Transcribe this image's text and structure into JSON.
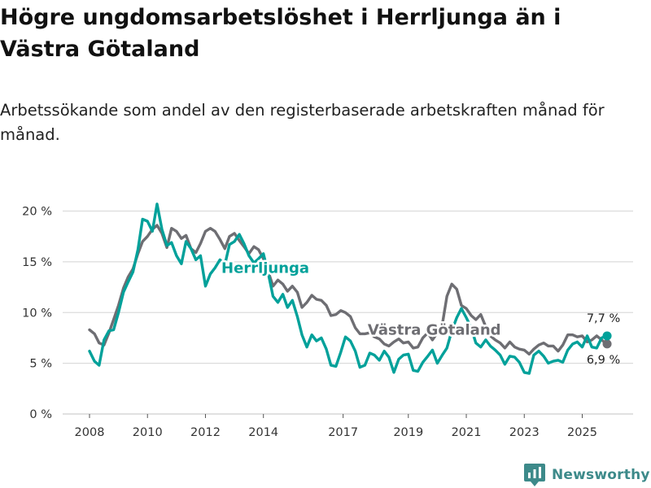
{
  "title": "Högre ungdomsarbetslöshet i Herrljunga än i Västra Götaland",
  "subtitle": "Arbetssökande som andel av den registerbaserade arbetskraften månad för månad.",
  "brand": "Newsworthy",
  "colors": {
    "herrljunga": "#00a19a",
    "vastra": "#6e6e73",
    "grid": "#dcdcdc",
    "axis": "#333333"
  },
  "chart_data": {
    "type": "line",
    "title": "Högre ungdomsarbetslöshet i Herrljunga än i Västra Götaland",
    "xlabel": "",
    "ylabel": "Arbetssökande som andel av den registerbaserade arbetskraften",
    "xlim": [
      2007.4,
      2026.8
    ],
    "ylim": [
      0,
      21
    ],
    "y_ticks": [
      0,
      5,
      10,
      15,
      20
    ],
    "y_tick_labels": [
      "0 %",
      "5 %",
      "10 %",
      "15 %",
      "20 %"
    ],
    "x_ticks": [
      2008,
      2010,
      2012,
      2014,
      2017,
      2019,
      2021,
      2023,
      2025
    ],
    "x_tick_labels": [
      "2008",
      "2010",
      "2012",
      "2014",
      "2017",
      "2019",
      "2021",
      "2023",
      "2025"
    ],
    "x_label_offsets": {
      "2017": -0.25
    },
    "grid": true,
    "series": [
      {
        "name": "Västra Götaland",
        "label_pos": [
          2017.6,
          7.8
        ],
        "points": [
          [
            2008.0,
            8.3
          ],
          [
            2008.17,
            7.9
          ],
          [
            2008.33,
            7.0
          ],
          [
            2008.5,
            6.8
          ],
          [
            2008.67,
            8.0
          ],
          [
            2008.83,
            9.3
          ],
          [
            2009.0,
            10.7
          ],
          [
            2009.17,
            12.4
          ],
          [
            2009.33,
            13.5
          ],
          [
            2009.5,
            14.3
          ],
          [
            2009.67,
            15.8
          ],
          [
            2009.83,
            17.0
          ],
          [
            2010.0,
            17.5
          ],
          [
            2010.17,
            18.2
          ],
          [
            2010.33,
            18.6
          ],
          [
            2010.5,
            17.8
          ],
          [
            2010.67,
            16.4
          ],
          [
            2010.83,
            18.3
          ],
          [
            2011.0,
            18.0
          ],
          [
            2011.17,
            17.3
          ],
          [
            2011.33,
            17.6
          ],
          [
            2011.5,
            16.3
          ],
          [
            2011.67,
            15.9
          ],
          [
            2011.83,
            16.8
          ],
          [
            2012.0,
            18.0
          ],
          [
            2012.17,
            18.3
          ],
          [
            2012.33,
            18.0
          ],
          [
            2012.5,
            17.2
          ],
          [
            2012.67,
            16.3
          ],
          [
            2012.83,
            17.5
          ],
          [
            2013.0,
            17.8
          ],
          [
            2013.17,
            17.1
          ],
          [
            2013.33,
            16.5
          ],
          [
            2013.5,
            15.8
          ],
          [
            2013.67,
            16.5
          ],
          [
            2013.83,
            16.2
          ],
          [
            2014.0,
            15.3
          ],
          [
            2014.17,
            14.0
          ],
          [
            2014.33,
            12.6
          ],
          [
            2014.5,
            13.2
          ],
          [
            2014.67,
            12.8
          ],
          [
            2014.83,
            12.1
          ],
          [
            2015.0,
            12.6
          ],
          [
            2015.17,
            12.0
          ],
          [
            2015.33,
            10.5
          ],
          [
            2015.5,
            11.0
          ],
          [
            2015.67,
            11.7
          ],
          [
            2015.83,
            11.3
          ],
          [
            2016.0,
            11.2
          ],
          [
            2016.17,
            10.7
          ],
          [
            2016.33,
            9.7
          ],
          [
            2016.5,
            9.8
          ],
          [
            2016.67,
            10.2
          ],
          [
            2016.83,
            10.0
          ],
          [
            2017.0,
            9.6
          ],
          [
            2017.17,
            8.5
          ],
          [
            2017.33,
            7.9
          ],
          [
            2017.5,
            7.9
          ],
          [
            2017.67,
            8.0
          ],
          [
            2017.83,
            7.6
          ],
          [
            2018.0,
            7.4
          ],
          [
            2018.17,
            6.9
          ],
          [
            2018.33,
            6.7
          ],
          [
            2018.5,
            7.1
          ],
          [
            2018.67,
            7.4
          ],
          [
            2018.83,
            7.0
          ],
          [
            2019.0,
            7.1
          ],
          [
            2019.17,
            6.5
          ],
          [
            2019.33,
            6.6
          ],
          [
            2019.5,
            7.5
          ],
          [
            2019.67,
            8.0
          ],
          [
            2019.83,
            7.3
          ],
          [
            2020.0,
            8.0
          ],
          [
            2020.17,
            8.8
          ],
          [
            2020.33,
            11.6
          ],
          [
            2020.5,
            12.8
          ],
          [
            2020.67,
            12.3
          ],
          [
            2020.83,
            10.7
          ],
          [
            2021.0,
            10.4
          ],
          [
            2021.17,
            9.7
          ],
          [
            2021.33,
            9.3
          ],
          [
            2021.5,
            9.8
          ],
          [
            2021.67,
            8.6
          ],
          [
            2021.83,
            7.7
          ],
          [
            2022.0,
            7.3
          ],
          [
            2022.17,
            7.0
          ],
          [
            2022.33,
            6.5
          ],
          [
            2022.5,
            7.1
          ],
          [
            2022.67,
            6.6
          ],
          [
            2022.83,
            6.4
          ],
          [
            2023.0,
            6.3
          ],
          [
            2023.17,
            5.9
          ],
          [
            2023.33,
            6.4
          ],
          [
            2023.5,
            6.8
          ],
          [
            2023.67,
            7.0
          ],
          [
            2023.83,
            6.7
          ],
          [
            2024.0,
            6.7
          ],
          [
            2024.17,
            6.2
          ],
          [
            2024.33,
            6.8
          ],
          [
            2024.5,
            7.8
          ],
          [
            2024.67,
            7.8
          ],
          [
            2024.83,
            7.6
          ],
          [
            2025.0,
            7.7
          ],
          [
            2025.17,
            7.1
          ],
          [
            2025.33,
            7.3
          ],
          [
            2025.5,
            7.7
          ],
          [
            2025.67,
            7.3
          ],
          [
            2025.83,
            6.9
          ]
        ],
        "last_label": "6,9 %"
      },
      {
        "name": "Herrljunga",
        "label_pos": [
          2012.55,
          13.9
        ],
        "points": [
          [
            2008.0,
            6.2
          ],
          [
            2008.17,
            5.2
          ],
          [
            2008.33,
            4.8
          ],
          [
            2008.5,
            7.3
          ],
          [
            2008.67,
            8.2
          ],
          [
            2008.83,
            8.3
          ],
          [
            2009.0,
            10.0
          ],
          [
            2009.17,
            12.0
          ],
          [
            2009.33,
            13.0
          ],
          [
            2009.5,
            14.0
          ],
          [
            2009.67,
            16.2
          ],
          [
            2009.83,
            19.2
          ],
          [
            2010.0,
            19.0
          ],
          [
            2010.17,
            18.0
          ],
          [
            2010.33,
            20.7
          ],
          [
            2010.5,
            18.2
          ],
          [
            2010.67,
            16.6
          ],
          [
            2010.83,
            16.9
          ],
          [
            2011.0,
            15.6
          ],
          [
            2011.17,
            14.8
          ],
          [
            2011.33,
            17.0
          ],
          [
            2011.5,
            16.3
          ],
          [
            2011.67,
            15.2
          ],
          [
            2011.83,
            15.6
          ],
          [
            2012.0,
            12.6
          ],
          [
            2012.17,
            13.8
          ],
          [
            2012.33,
            14.4
          ],
          [
            2012.5,
            15.2
          ],
          [
            2012.67,
            14.7
          ],
          [
            2012.83,
            16.7
          ],
          [
            2013.0,
            17.0
          ],
          [
            2013.17,
            17.7
          ],
          [
            2013.33,
            16.8
          ],
          [
            2013.5,
            15.6
          ],
          [
            2013.67,
            14.9
          ],
          [
            2013.83,
            15.3
          ],
          [
            2014.0,
            15.8
          ],
          [
            2014.17,
            13.8
          ],
          [
            2014.33,
            11.6
          ],
          [
            2014.5,
            11.0
          ],
          [
            2014.67,
            11.8
          ],
          [
            2014.83,
            10.5
          ],
          [
            2015.0,
            11.2
          ],
          [
            2015.17,
            9.6
          ],
          [
            2015.33,
            7.8
          ],
          [
            2015.5,
            6.6
          ],
          [
            2015.67,
            7.8
          ],
          [
            2015.83,
            7.2
          ],
          [
            2016.0,
            7.5
          ],
          [
            2016.17,
            6.4
          ],
          [
            2016.33,
            4.8
          ],
          [
            2016.5,
            4.7
          ],
          [
            2016.67,
            6.1
          ],
          [
            2016.83,
            7.6
          ],
          [
            2017.0,
            7.2
          ],
          [
            2017.17,
            6.2
          ],
          [
            2017.33,
            4.6
          ],
          [
            2017.5,
            4.8
          ],
          [
            2017.67,
            6.0
          ],
          [
            2017.83,
            5.8
          ],
          [
            2018.0,
            5.3
          ],
          [
            2018.17,
            6.2
          ],
          [
            2018.33,
            5.6
          ],
          [
            2018.5,
            4.1
          ],
          [
            2018.67,
            5.4
          ],
          [
            2018.83,
            5.8
          ],
          [
            2019.0,
            5.9
          ],
          [
            2019.17,
            4.3
          ],
          [
            2019.33,
            4.2
          ],
          [
            2019.5,
            5.1
          ],
          [
            2019.67,
            5.7
          ],
          [
            2019.83,
            6.3
          ],
          [
            2020.0,
            5.0
          ],
          [
            2020.17,
            5.8
          ],
          [
            2020.33,
            6.5
          ],
          [
            2020.5,
            8.2
          ],
          [
            2020.67,
            9.5
          ],
          [
            2020.83,
            10.4
          ],
          [
            2021.0,
            9.5
          ],
          [
            2021.17,
            8.5
          ],
          [
            2021.33,
            7.0
          ],
          [
            2021.5,
            6.6
          ],
          [
            2021.67,
            7.3
          ],
          [
            2021.83,
            6.7
          ],
          [
            2022.0,
            6.3
          ],
          [
            2022.17,
            5.8
          ],
          [
            2022.33,
            4.9
          ],
          [
            2022.5,
            5.7
          ],
          [
            2022.67,
            5.6
          ],
          [
            2022.83,
            5.1
          ],
          [
            2023.0,
            4.1
          ],
          [
            2023.17,
            4.0
          ],
          [
            2023.33,
            5.8
          ],
          [
            2023.5,
            6.2
          ],
          [
            2023.67,
            5.7
          ],
          [
            2023.83,
            5.0
          ],
          [
            2024.0,
            5.2
          ],
          [
            2024.17,
            5.3
          ],
          [
            2024.33,
            5.1
          ],
          [
            2024.5,
            6.3
          ],
          [
            2024.67,
            6.9
          ],
          [
            2024.83,
            7.1
          ],
          [
            2025.0,
            6.6
          ],
          [
            2025.17,
            7.7
          ],
          [
            2025.33,
            6.6
          ],
          [
            2025.5,
            6.5
          ],
          [
            2025.67,
            7.5
          ],
          [
            2025.83,
            7.7
          ]
        ],
        "last_label": "7,7 %"
      }
    ]
  }
}
